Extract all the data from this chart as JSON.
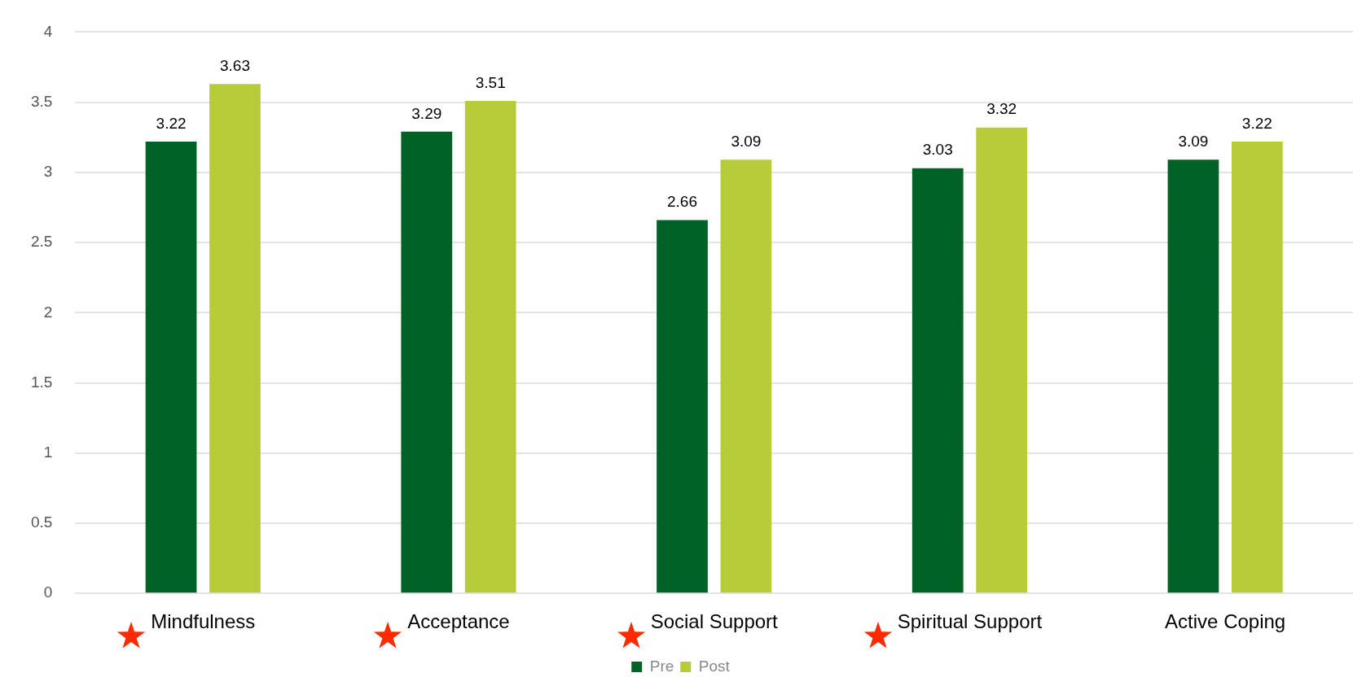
{
  "chart_data": {
    "type": "bar",
    "categories": [
      "Mindfulness",
      "Acceptance",
      "Social Support",
      "Spiritual Support",
      "Active Coping"
    ],
    "series": [
      {
        "name": "Pre",
        "color": "#006225",
        "values": [
          3.22,
          3.29,
          2.66,
          3.03,
          3.09
        ]
      },
      {
        "name": "Post",
        "color": "#b8cc3a",
        "values": [
          3.63,
          3.51,
          3.09,
          3.32,
          3.22
        ]
      }
    ],
    "ylim": [
      0,
      4
    ],
    "yticks": [
      0,
      0.5,
      1,
      1.5,
      2,
      2.5,
      3,
      3.5,
      4
    ],
    "grid": "y",
    "legend": "bottom",
    "data_labels": true
  }
}
